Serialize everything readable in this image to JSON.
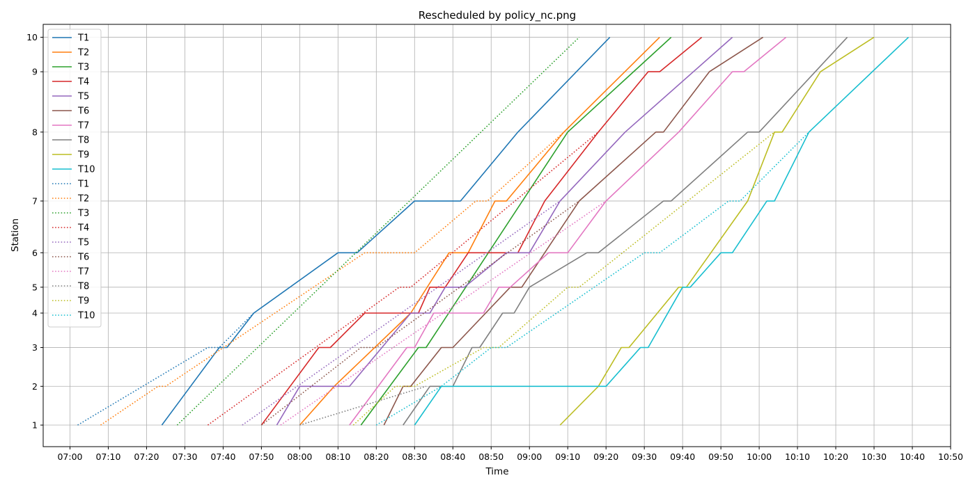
{
  "chart_data": {
    "type": "line",
    "title": "Rescheduled by policy_nc.png",
    "xlabel": "Time",
    "ylabel": "Station",
    "x_unit": "time of day (HH:MM)",
    "xlim": [
      "06:53",
      "10:50"
    ],
    "ylim": [
      0.5,
      10.3
    ],
    "x_ticks": [
      "07:00",
      "07:10",
      "07:20",
      "07:30",
      "07:40",
      "07:50",
      "08:00",
      "08:10",
      "08:20",
      "08:30",
      "08:40",
      "08:50",
      "09:00",
      "09:10",
      "09:20",
      "09:30",
      "09:40",
      "09:50",
      "10:00",
      "10:10",
      "10:20",
      "10:30",
      "10:40",
      "10:50"
    ],
    "y_ticks": [
      1,
      2,
      3,
      4,
      5,
      6,
      7,
      8,
      9,
      10
    ],
    "y_scale": "nonlinear station spacing",
    "station_positions": {
      "1": 1.0,
      "2": 1.9,
      "3": 2.8,
      "4": 3.6,
      "5": 4.2,
      "6": 5.0,
      "7": 6.2,
      "8": 7.8,
      "9": 9.2,
      "10": 10.0
    },
    "grid": true,
    "legend_position": "top-left",
    "series": [
      {
        "name": "T1",
        "style": "solid",
        "color": "#1f77b4",
        "points": [
          [
            "07:24",
            1
          ],
          [
            "07:39",
            3
          ],
          [
            "07:41",
            3
          ],
          [
            "07:48",
            4
          ],
          [
            "08:10",
            6
          ],
          [
            "08:15",
            6
          ],
          [
            "08:30",
            7
          ],
          [
            "08:42",
            7
          ],
          [
            "08:57",
            8
          ],
          [
            "09:21",
            10
          ]
        ]
      },
      {
        "name": "T2",
        "style": "solid",
        "color": "#ff7f0e",
        "points": [
          [
            "08:00",
            1
          ],
          [
            "08:09",
            2
          ],
          [
            "08:29",
            4
          ],
          [
            "08:39",
            6
          ],
          [
            "08:44",
            6
          ],
          [
            "08:51",
            7
          ],
          [
            "08:54",
            7
          ],
          [
            "09:09",
            8
          ],
          [
            "09:34",
            10
          ]
        ]
      },
      {
        "name": "T3",
        "style": "solid",
        "color": "#2ca02c",
        "points": [
          [
            "08:16",
            1
          ],
          [
            "08:31",
            3
          ],
          [
            "08:33",
            3
          ],
          [
            "09:10",
            8
          ],
          [
            "09:37",
            10
          ]
        ]
      },
      {
        "name": "T4",
        "style": "solid",
        "color": "#d62728",
        "points": [
          [
            "07:50",
            1
          ],
          [
            "08:05",
            3
          ],
          [
            "08:08",
            3
          ],
          [
            "08:17",
            4
          ],
          [
            "08:31",
            4
          ],
          [
            "08:34",
            5
          ],
          [
            "08:38",
            5
          ],
          [
            "08:44",
            6
          ],
          [
            "08:57",
            6
          ],
          [
            "09:04",
            7
          ],
          [
            "09:18",
            8
          ],
          [
            "09:31",
            9
          ],
          [
            "09:34",
            9
          ],
          [
            "09:45",
            10
          ]
        ]
      },
      {
        "name": "T5",
        "style": "solid",
        "color": "#9467bd",
        "points": [
          [
            "07:54",
            1
          ],
          [
            "08:00",
            2
          ],
          [
            "08:13",
            2
          ],
          [
            "08:29",
            4
          ],
          [
            "08:34",
            4
          ],
          [
            "08:38",
            5
          ],
          [
            "08:43",
            5
          ],
          [
            "08:54",
            6
          ],
          [
            "09:00",
            6
          ],
          [
            "09:08",
            7
          ],
          [
            "09:25",
            8
          ],
          [
            "09:53",
            10
          ]
        ]
      },
      {
        "name": "T6",
        "style": "solid",
        "color": "#8c564b",
        "points": [
          [
            "08:22",
            1
          ],
          [
            "08:27",
            2
          ],
          [
            "08:29",
            2
          ],
          [
            "08:37",
            3
          ],
          [
            "08:40",
            3
          ],
          [
            "08:55",
            5
          ],
          [
            "08:58",
            5
          ],
          [
            "09:13",
            7
          ],
          [
            "09:33",
            8
          ],
          [
            "09:35",
            8
          ],
          [
            "09:47",
            9
          ],
          [
            "10:01",
            10
          ]
        ]
      },
      {
        "name": "T7",
        "style": "solid",
        "color": "#e377c2",
        "points": [
          [
            "08:13",
            1
          ],
          [
            "08:28",
            3
          ],
          [
            "08:30",
            3
          ],
          [
            "08:35",
            4
          ],
          [
            "08:48",
            4
          ],
          [
            "08:52",
            5
          ],
          [
            "08:55",
            5
          ],
          [
            "09:05",
            6
          ],
          [
            "09:10",
            6
          ],
          [
            "09:20",
            7
          ],
          [
            "09:39",
            8
          ],
          [
            "09:53",
            9
          ],
          [
            "09:56",
            9
          ],
          [
            "10:07",
            10
          ]
        ]
      },
      {
        "name": "T8",
        "style": "solid",
        "color": "#7f7f7f",
        "points": [
          [
            "08:27",
            1
          ],
          [
            "08:34",
            2
          ],
          [
            "08:40",
            2
          ],
          [
            "08:45",
            3
          ],
          [
            "08:47",
            3
          ],
          [
            "08:53",
            4
          ],
          [
            "08:56",
            4
          ],
          [
            "09:00",
            5
          ],
          [
            "09:15",
            6
          ],
          [
            "09:18",
            6
          ],
          [
            "09:35",
            7
          ],
          [
            "09:37",
            7
          ],
          [
            "09:57",
            8
          ],
          [
            "10:00",
            8
          ],
          [
            "10:23",
            10
          ]
        ]
      },
      {
        "name": "T9",
        "style": "solid",
        "color": "#bcbd22",
        "points": [
          [
            "09:08",
            1
          ],
          [
            "09:18",
            2
          ],
          [
            "09:24",
            3
          ],
          [
            "09:26",
            3
          ],
          [
            "09:39",
            5
          ],
          [
            "09:41",
            5
          ],
          [
            "09:57",
            7
          ],
          [
            "10:04",
            8
          ],
          [
            "10:06",
            8
          ],
          [
            "10:16",
            9
          ],
          [
            "10:30",
            10
          ]
        ]
      },
      {
        "name": "T10",
        "style": "solid",
        "color": "#17becf",
        "points": [
          [
            "08:30",
            1
          ],
          [
            "08:37",
            2
          ],
          [
            "09:20",
            2
          ],
          [
            "09:29",
            3
          ],
          [
            "09:31",
            3
          ],
          [
            "09:40",
            5
          ],
          [
            "09:42",
            5
          ],
          [
            "09:50",
            6
          ],
          [
            "09:53",
            6
          ],
          [
            "10:02",
            7
          ],
          [
            "10:04",
            7
          ],
          [
            "10:13",
            8
          ],
          [
            "10:39",
            10
          ]
        ]
      },
      {
        "name": "T1",
        "style": "dotted",
        "color": "#1f77b4",
        "points": [
          [
            "07:02",
            1
          ],
          [
            "07:36",
            3
          ],
          [
            "07:39",
            3
          ],
          [
            "07:48",
            4
          ]
        ]
      },
      {
        "name": "T2",
        "style": "dotted",
        "color": "#ff7f0e",
        "points": [
          [
            "07:08",
            1
          ],
          [
            "07:23",
            2
          ],
          [
            "07:25",
            2
          ],
          [
            "08:17",
            6
          ],
          [
            "08:30",
            6
          ],
          [
            "08:46",
            7
          ],
          [
            "08:49",
            7
          ],
          [
            "09:09",
            8
          ]
        ]
      },
      {
        "name": "T3",
        "style": "dotted",
        "color": "#2ca02c",
        "points": [
          [
            "07:28",
            1
          ],
          [
            "09:13",
            10
          ]
        ]
      },
      {
        "name": "T4",
        "style": "dotted",
        "color": "#d62728",
        "points": [
          [
            "07:36",
            1
          ],
          [
            "08:26",
            5
          ],
          [
            "08:29",
            5
          ],
          [
            "09:18",
            8
          ]
        ]
      },
      {
        "name": "T5",
        "style": "dotted",
        "color": "#9467bd",
        "points": [
          [
            "07:45",
            1
          ],
          [
            "09:08",
            7
          ]
        ]
      },
      {
        "name": "T6",
        "style": "dotted",
        "color": "#8c564b",
        "points": [
          [
            "07:50",
            1
          ],
          [
            "08:16",
            3
          ],
          [
            "08:20",
            3
          ],
          [
            "09:13",
            7
          ]
        ]
      },
      {
        "name": "T7",
        "style": "dotted",
        "color": "#e377c2",
        "points": [
          [
            "07:55",
            1
          ],
          [
            "09:20",
            7
          ]
        ]
      },
      {
        "name": "T8",
        "style": "dotted",
        "color": "#7f7f7f",
        "points": [
          [
            "08:00",
            1
          ],
          [
            "08:33",
            2
          ]
        ]
      },
      {
        "name": "T9",
        "style": "dotted",
        "color": "#bcbd22",
        "points": [
          [
            "08:14",
            1
          ],
          [
            "08:25",
            2
          ],
          [
            "08:30",
            2
          ],
          [
            "08:48",
            3
          ],
          [
            "08:52",
            3
          ],
          [
            "09:10",
            5
          ],
          [
            "09:13",
            5
          ],
          [
            "10:04",
            8
          ]
        ]
      },
      {
        "name": "T10",
        "style": "dotted",
        "color": "#17becf",
        "points": [
          [
            "08:20",
            1
          ],
          [
            "08:37",
            2
          ],
          [
            "08:50",
            3
          ],
          [
            "08:54",
            3
          ],
          [
            "09:30",
            6
          ],
          [
            "09:34",
            6
          ],
          [
            "09:52",
            7
          ],
          [
            "09:55",
            7
          ],
          [
            "10:13",
            8
          ]
        ]
      }
    ]
  }
}
